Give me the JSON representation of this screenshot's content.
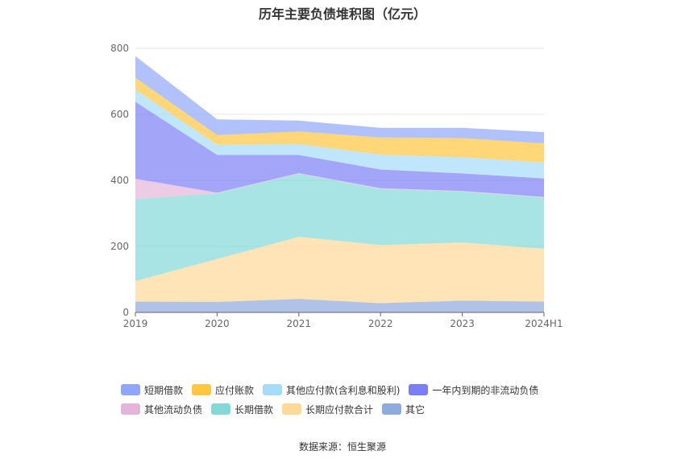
{
  "chart_data": {
    "type": "area",
    "title": "历年主要负债堆积图（亿元）",
    "x": [
      "2019",
      "2020",
      "2021",
      "2022",
      "2023",
      "2024H1"
    ],
    "ylim": [
      0,
      800
    ],
    "yticks": [
      0,
      200,
      400,
      600,
      800
    ],
    "stacked": true,
    "grid": true,
    "legend_position": "bottom",
    "series": [
      {
        "name": "其它",
        "color": "#8faadc",
        "values": [
          33,
          32,
          41,
          28,
          36,
          33
        ]
      },
      {
        "name": "长期应付款合计",
        "color": "#ffd998",
        "values": [
          62,
          130,
          188,
          176,
          176,
          160
        ]
      },
      {
        "name": "长期借款",
        "color": "#83d9d7",
        "values": [
          248,
          199,
          191,
          170,
          154,
          155
        ]
      },
      {
        "name": "其他流动负债",
        "color": "#e5b5d9",
        "values": [
          62,
          2,
          2,
          2,
          2,
          2
        ]
      },
      {
        "name": "一年内到期的非流动负债",
        "color": "#7b7ff5",
        "values": [
          233,
          114,
          55,
          57,
          53,
          56
        ]
      },
      {
        "name": "其他应付款(含利息和股利)",
        "color": "#a5dcf9",
        "values": [
          37,
          31,
          33,
          45,
          49,
          48
        ]
      },
      {
        "name": "应付账款",
        "color": "#ffc640",
        "values": [
          36,
          29,
          38,
          52,
          58,
          58
        ]
      },
      {
        "name": "短期借款",
        "color": "#8fa6fa",
        "values": [
          65,
          48,
          33,
          29,
          31,
          34
        ]
      }
    ],
    "legend_order": [
      "短期借款",
      "应付账款",
      "其他应付款(含利息和股利)",
      "一年内到期的非流动负债",
      "其他流动负债",
      "长期借款",
      "长期应付款合计",
      "其它"
    ]
  },
  "source_text": "数据来源：恒生聚源"
}
